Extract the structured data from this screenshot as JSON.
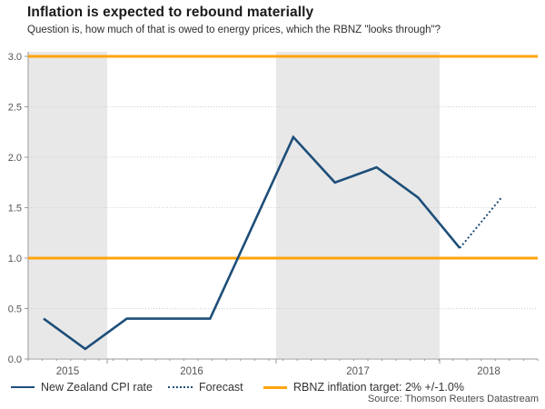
{
  "title": "Inflation is expected to rebound materially",
  "subtitle": "Question is, how much of that is owed to energy prices, which the RBNZ \"looks through\"?",
  "source": "Source: Thomson Reuters Datastream",
  "colors": {
    "line": "#1d4e79",
    "target": "#FFA40D",
    "band": "#e8e8e8",
    "grid": "#cfcfcf",
    "axis": "#9a9a9a",
    "tick_label": "#555555",
    "title": "#1a1a1a",
    "subtitle": "#2e2e2e",
    "legend_text": "#333333",
    "source": "#4a4a4a"
  },
  "chart_data": {
    "type": "line",
    "title": "Inflation is expected to rebound materially",
    "subtitle": "Question is, how much of that is owed to energy prices, which the RBNZ \"looks through\"?",
    "x_quarters": [
      "2015-Q3",
      "2015-Q4",
      "2016-Q1",
      "2016-Q2",
      "2016-Q3",
      "2016-Q4",
      "2017-Q1",
      "2017-Q2",
      "2017-Q3",
      "2017-Q4",
      "2018-Q1",
      "2018-Q2"
    ],
    "series": [
      {
        "name": "New Zealand CPI rate",
        "style": "solid",
        "values": [
          0.4,
          0.1,
          0.4,
          0.4,
          0.4,
          1.3,
          2.2,
          1.75,
          1.9,
          1.6,
          1.1,
          null
        ]
      },
      {
        "name": "Forecast",
        "style": "dotted",
        "values": [
          null,
          null,
          null,
          null,
          null,
          null,
          null,
          null,
          null,
          null,
          1.1,
          1.6
        ]
      },
      {
        "name": "RBNZ inflation target: 2% +/-1.0%",
        "style": "horizontal-target-lines",
        "values": [
          1.0,
          3.0
        ]
      }
    ],
    "year_labels": [
      "2015",
      "2016",
      "2017",
      "2018"
    ],
    "yticks": [
      0,
      0.5,
      1,
      1.5,
      2,
      2.5,
      3
    ],
    "ylim": [
      0,
      3
    ],
    "xlabel": "",
    "ylabel": "",
    "grid": "dotted-horizontal",
    "shaded_year_bands": [
      "2015",
      "2017"
    ],
    "legend_position": "bottom"
  }
}
